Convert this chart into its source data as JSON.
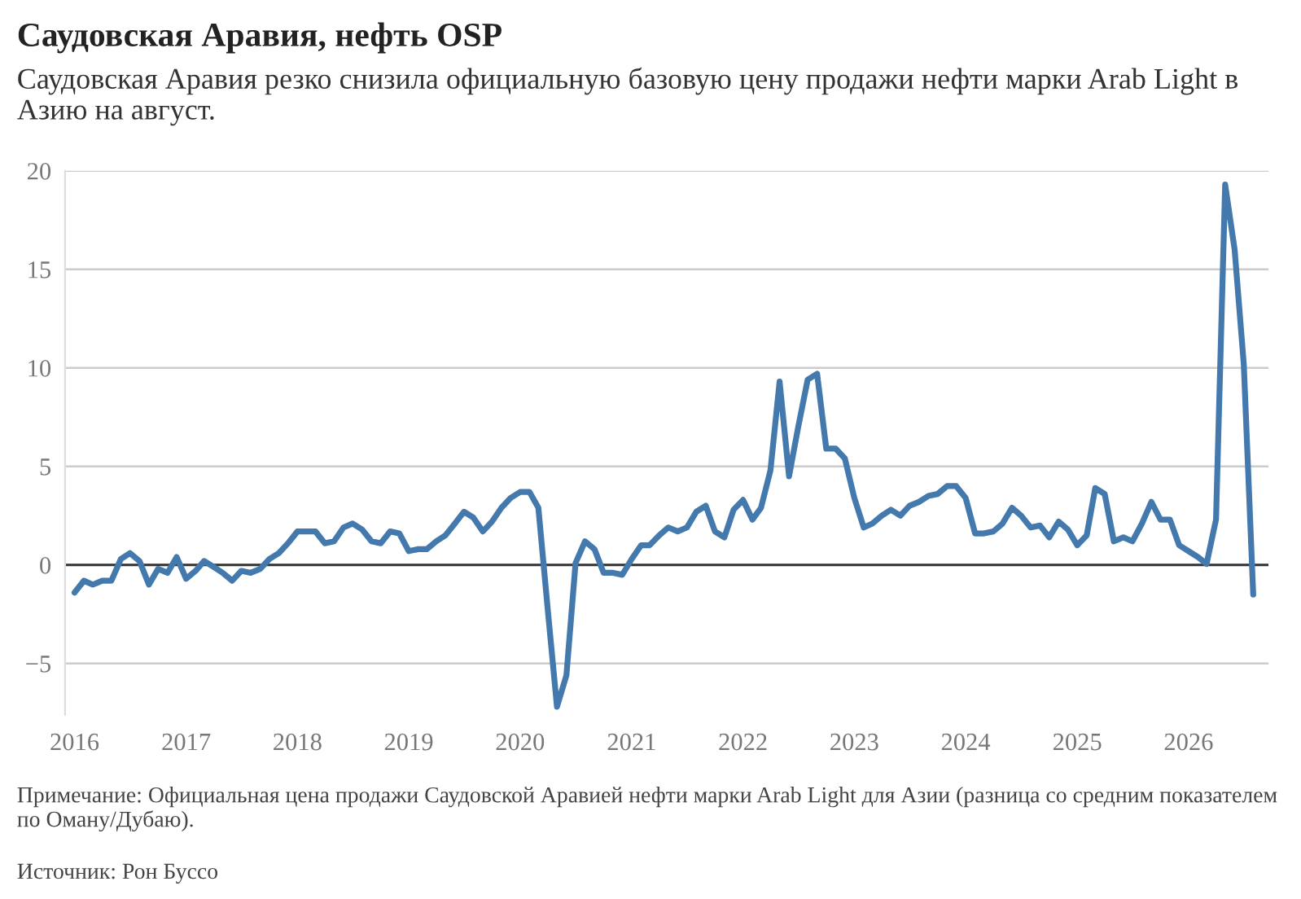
{
  "chart_data": {
    "type": "line",
    "title": "Саудовская Аравия, нефть OSP",
    "subtitle": "Саудовская Аравия резко снизила официальную базовую цену продажи нефти марки Arab Light в Азию на август.",
    "annotations": [
      "Примечание: Официальная цена продажи Саудовской Аравией нефти марки Arab Light для Азии (разница со средним показателем по Оману/Дубаю).",
      "Источник: Рон Буссо"
    ],
    "x": [
      "2016-01",
      "2016-02",
      "2016-03",
      "2016-04",
      "2016-05",
      "2016-06",
      "2016-07",
      "2016-08",
      "2016-09",
      "2016-10",
      "2016-11",
      "2016-12",
      "2017-01",
      "2017-02",
      "2017-03",
      "2017-04",
      "2017-05",
      "2017-06",
      "2017-07",
      "2017-08",
      "2017-09",
      "2017-10",
      "2017-11",
      "2017-12",
      "2018-01",
      "2018-02",
      "2018-03",
      "2018-04",
      "2018-05",
      "2018-06",
      "2018-07",
      "2018-08",
      "2018-09",
      "2018-10",
      "2018-11",
      "2018-12",
      "2019-01",
      "2019-02",
      "2019-03",
      "2019-04",
      "2019-05",
      "2019-06",
      "2019-07",
      "2019-08",
      "2019-09",
      "2019-10",
      "2019-11",
      "2019-12",
      "2020-01",
      "2020-02",
      "2020-03",
      "2020-04",
      "2020-05",
      "2020-06",
      "2020-07",
      "2020-08",
      "2020-09",
      "2020-10",
      "2020-11",
      "2020-12",
      "2021-01",
      "2021-02",
      "2021-03",
      "2021-04",
      "2021-05",
      "2021-06",
      "2021-07",
      "2021-08",
      "2021-09",
      "2021-10",
      "2021-11",
      "2021-12",
      "2022-01",
      "2022-02",
      "2022-03",
      "2022-04",
      "2022-05",
      "2022-06",
      "2022-07",
      "2022-08",
      "2022-09",
      "2022-10",
      "2022-11",
      "2022-12",
      "2023-01",
      "2023-02",
      "2023-03",
      "2023-04",
      "2023-05",
      "2023-06",
      "2023-07",
      "2023-08",
      "2023-09",
      "2023-10",
      "2023-11",
      "2023-12",
      "2024-01",
      "2024-02",
      "2024-03",
      "2024-04",
      "2024-05",
      "2024-06",
      "2024-07",
      "2024-08",
      "2024-09",
      "2024-10",
      "2024-11",
      "2024-12",
      "2025-01",
      "2025-02",
      "2025-03",
      "2025-04",
      "2025-05",
      "2025-06",
      "2025-07",
      "2025-08",
      "2025-09",
      "2025-10",
      "2025-11",
      "2025-12",
      "2026-01",
      "2026-02",
      "2026-03",
      "2026-04",
      "2026-05",
      "2026-06",
      "2026-07",
      "2026-08"
    ],
    "series": [
      {
        "color": "#4479ad",
        "values": [
          -1.4,
          -0.8,
          -1.0,
          -0.8,
          -0.8,
          0.3,
          0.6,
          0.2,
          -1.0,
          -0.2,
          -0.4,
          0.4,
          -0.7,
          -0.3,
          0.2,
          -0.1,
          -0.4,
          -0.8,
          -0.3,
          -0.4,
          -0.2,
          0.3,
          0.6,
          1.1,
          1.7,
          1.7,
          1.7,
          1.1,
          1.2,
          1.9,
          2.1,
          1.8,
          1.2,
          1.1,
          1.7,
          1.6,
          0.7,
          0.8,
          0.8,
          1.2,
          1.5,
          2.1,
          2.7,
          2.4,
          1.7,
          2.2,
          2.9,
          3.4,
          3.7,
          3.7,
          2.9,
          -2.3,
          -7.2,
          -5.6,
          0.1,
          1.2,
          0.8,
          -0.4,
          -0.4,
          -0.5,
          0.3,
          1.0,
          1.0,
          1.5,
          1.9,
          1.7,
          1.9,
          2.7,
          3.0,
          1.7,
          1.4,
          2.8,
          3.3,
          2.3,
          2.9,
          4.8,
          9.3,
          4.5,
          7.0,
          9.4,
          9.7,
          5.9,
          5.9,
          5.4,
          3.4,
          1.9,
          2.1,
          2.5,
          2.8,
          2.5,
          3.0,
          3.2,
          3.5,
          3.6,
          4.0,
          4.0,
          3.4,
          1.6,
          1.6,
          1.7,
          2.1,
          2.9,
          2.5,
          1.9,
          2.0,
          1.4,
          2.2,
          1.8,
          1.0,
          1.5,
          3.9,
          3.6,
          1.2,
          1.4,
          1.2,
          2.1,
          3.2,
          2.3,
          2.3,
          1.0,
          0.7,
          0.4,
          0.05,
          2.3,
          19.3,
          16.0,
          10.2,
          -1.5
        ]
      }
    ],
    "xlim": [
      "2015-12-01",
      "2026-09-20"
    ],
    "xticks": [
      {
        "value": "2016-01",
        "label": "2016"
      },
      {
        "value": "2017-01",
        "label": "2017"
      },
      {
        "value": "2018-01",
        "label": "2018"
      },
      {
        "value": "2019-01",
        "label": "2019"
      },
      {
        "value": "2020-01",
        "label": "2020"
      },
      {
        "value": "2021-01",
        "label": "2021"
      },
      {
        "value": "2022-01",
        "label": "2022"
      },
      {
        "value": "2023-01",
        "label": "2023"
      },
      {
        "value": "2024-01",
        "label": "2024"
      },
      {
        "value": "2025-01",
        "label": "2025"
      },
      {
        "value": "2026-01",
        "label": "2026"
      }
    ],
    "ylim": [
      -7.6,
      20
    ],
    "yticks": [
      {
        "value": -5,
        "label": "−5"
      },
      0,
      5,
      10,
      15,
      20
    ],
    "grid": "y",
    "ref_lines": [
      {
        "axis": "y",
        "value": 0,
        "color": "#333333"
      }
    ],
    "marker": "none",
    "line_style": "solid"
  }
}
